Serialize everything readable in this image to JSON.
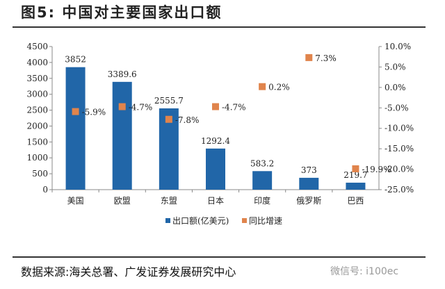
{
  "title": "图5:  中国对主要国家出口额",
  "source": "数据来源:海关总署、广发证券发展研究中心",
  "watermark": "微信号: i100ec",
  "chart_data": {
    "type": "bar+scatter",
    "title": "中国对主要国家出口额",
    "categories": [
      "美国",
      "欧盟",
      "东盟",
      "日本",
      "印度",
      "俄罗斯",
      "巴西"
    ],
    "series": [
      {
        "name": "出口额(亿美元)",
        "type": "bar",
        "axis": "left",
        "color": "#2166a8",
        "values": [
          3852,
          3389.6,
          2555.7,
          1292.4,
          583.2,
          373,
          219.7
        ],
        "labels": [
          "3852",
          "3389.6",
          "2555.7",
          "1292.4",
          "583.2",
          "373",
          "219.7"
        ]
      },
      {
        "name": "同比增速",
        "type": "scatter",
        "axis": "right",
        "color": "#e0844c",
        "values": [
          -5.9,
          -4.7,
          -7.8,
          -4.7,
          0.2,
          7.3,
          -19.9
        ],
        "labels": [
          "-5.9%",
          "-4.7%",
          "-7.8%",
          "-4.7%",
          "0.2%",
          "7.3%",
          "-19.9%"
        ]
      }
    ],
    "left_axis": {
      "ylim": [
        0,
        4500
      ],
      "ticks": [
        "0",
        "500",
        "1000",
        "1500",
        "2000",
        "2500",
        "3000",
        "3500",
        "4000",
        "4500"
      ]
    },
    "right_axis": {
      "ylim": [
        -25,
        10
      ],
      "ticks": [
        "-25.0%",
        "-20.0%",
        "-15.0%",
        "-10.0%",
        "-5.0%",
        "0.0%",
        "5.0%",
        "10.0%"
      ]
    },
    "legend": {
      "position": "bottom",
      "items": [
        "出口额(亿美元)",
        "同比增速"
      ]
    }
  }
}
